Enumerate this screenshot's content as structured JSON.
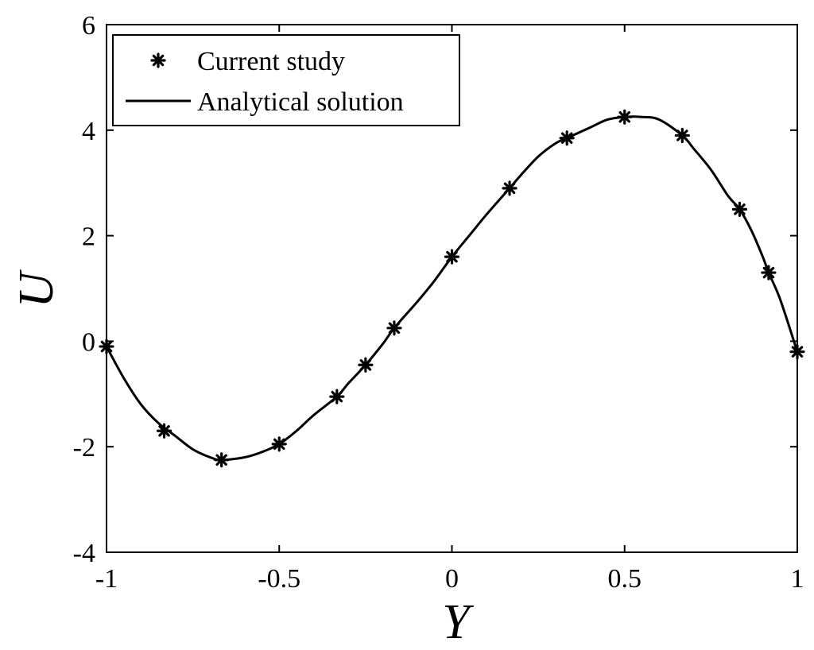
{
  "chart_data": {
    "type": "line",
    "title": "",
    "xlabel": "Y",
    "ylabel": "U",
    "xlim": [
      -1,
      1
    ],
    "ylim": [
      -4,
      6
    ],
    "x_ticks": [
      -1,
      -0.5,
      0,
      0.5,
      1
    ],
    "x_tick_labels": [
      "-1",
      "-0.5",
      "0",
      "0.5",
      "1"
    ],
    "y_ticks": [
      -4,
      -2,
      0,
      2,
      4,
      6
    ],
    "y_tick_labels": [
      "-4",
      "-2",
      "0",
      "2",
      "4",
      "6"
    ],
    "grid": false,
    "legend_position": "top-left",
    "series": [
      {
        "name": "Current study",
        "style": "markers",
        "marker": "star",
        "color": "#000000",
        "x": [
          -1.0,
          -0.833,
          -0.667,
          -0.5,
          -0.333,
          -0.25,
          -0.167,
          0.0,
          0.167,
          0.333,
          0.5,
          0.667,
          0.833,
          0.917,
          1.0
        ],
        "y": [
          -0.1,
          -1.7,
          -2.25,
          -1.95,
          -1.05,
          -0.45,
          0.25,
          1.6,
          2.9,
          3.85,
          4.25,
          3.9,
          2.5,
          1.3,
          -0.2
        ]
      },
      {
        "name": "Analytical solution",
        "style": "line",
        "color": "#000000",
        "x": [
          -1.0,
          -0.95,
          -0.9,
          -0.85,
          -0.8,
          -0.75,
          -0.7,
          -0.667,
          -0.6,
          -0.55,
          -0.5,
          -0.45,
          -0.4,
          -0.333,
          -0.3,
          -0.25,
          -0.2,
          -0.167,
          -0.1,
          -0.05,
          0.0,
          0.05,
          0.1,
          0.167,
          0.2,
          0.25,
          0.3,
          0.333,
          0.4,
          0.45,
          0.5,
          0.55,
          0.6,
          0.667,
          0.7,
          0.75,
          0.8,
          0.833,
          0.867,
          0.9,
          0.917,
          0.95,
          1.0
        ],
        "y": [
          -0.1,
          -0.7,
          -1.2,
          -1.55,
          -1.8,
          -2.05,
          -2.2,
          -2.25,
          -2.2,
          -2.1,
          -1.95,
          -1.7,
          -1.4,
          -1.05,
          -0.8,
          -0.45,
          -0.05,
          0.25,
          0.75,
          1.15,
          1.6,
          2.0,
          2.4,
          2.9,
          3.15,
          3.5,
          3.75,
          3.85,
          4.05,
          4.2,
          4.25,
          4.25,
          4.2,
          3.9,
          3.65,
          3.25,
          2.75,
          2.5,
          2.1,
          1.6,
          1.3,
          0.8,
          -0.2
        ]
      }
    ]
  }
}
